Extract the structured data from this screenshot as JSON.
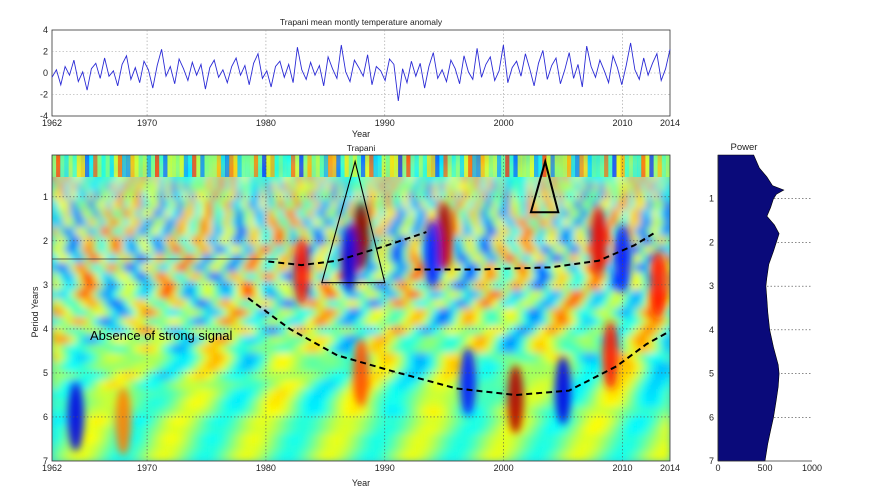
{
  "chart_data": [
    {
      "type": "line",
      "title": "Trapani mean montly temperature anomaly",
      "xlabel": "Year",
      "ylabel": "",
      "xlim": [
        1962,
        2014
      ],
      "ylim": [
        -4,
        4
      ],
      "xticks": [
        "1962",
        "1970",
        "1980",
        "1990",
        "2000",
        "2010",
        "2014"
      ],
      "yticks": [
        "4",
        "2",
        "0",
        "-2",
        "-4"
      ],
      "grid": true,
      "line_color": "#2b2bd6",
      "series": [
        {
          "values": [
            -0.4,
            0.3,
            -1.1,
            0.6,
            -0.2,
            1.2,
            -0.8,
            0.1,
            -1.6,
            0.4,
            0.9,
            -0.5,
            1.4,
            -0.3,
            0.2,
            -1.2,
            0.8,
            1.6,
            -0.6,
            0.5,
            -0.9,
            1.1,
            0.3,
            -1.4,
            0.7,
            2.2,
            -0.3,
            0.6,
            -1.0,
            1.3,
            0.4,
            -0.7,
            1.0,
            -0.2,
            0.8,
            -1.5,
            0.5,
            1.2,
            -0.4,
            0.3,
            -0.9,
            0.6,
            1.4,
            -0.2,
            0.7,
            -1.1,
            0.9,
            1.8,
            -0.5,
            0.2,
            -1.3,
            0.6,
            1.1,
            -0.4,
            0.8,
            -0.9,
            2.4,
            0.3,
            -0.6,
            1.0,
            -0.2,
            0.7,
            -1.2,
            1.5,
            0.4,
            -0.5,
            2.6,
            0.1,
            -0.8,
            1.2,
            0.5,
            -0.3,
            1.7,
            -1.1,
            0.6,
            0.2,
            -0.7,
            1.3,
            0.8,
            -2.6,
            0.4,
            -0.9,
            1.1,
            -0.3,
            0.9,
            -1.4,
            0.6,
            1.9,
            -0.5,
            0.3,
            -0.8,
            1.2,
            0.4,
            -1.0,
            1.6,
            0.1,
            -0.6,
            2.3,
            -0.4,
            0.8,
            1.5,
            -0.7,
            0.2,
            2.6,
            -0.9,
            0.5,
            1.1,
            -0.3,
            1.8,
            0.4,
            -1.2,
            0.9,
            2.1,
            -0.6,
            0.7,
            1.4,
            -1.0,
            0.3,
            1.9,
            -0.5,
            0.8,
            -1.3,
            2.5,
            0.6,
            -0.4,
            1.2,
            0.2,
            -0.9,
            1.6,
            0.5,
            -1.1,
            0.7,
            2.8,
            0.3,
            -0.6,
            1.4,
            -0.2,
            0.9,
            1.8,
            -0.7,
            0.4,
            2.2
          ]
        }
      ]
    },
    {
      "type": "heatmap",
      "title": "Trapani",
      "xlabel": "Year",
      "ylabel": "Period Years",
      "xlim": [
        1962,
        2014
      ],
      "ylim": [
        7,
        0.05
      ],
      "xticks": [
        "1962",
        "1970",
        "1980",
        "1990",
        "2000",
        "2010",
        "2014"
      ],
      "yticks": [
        "1",
        "2",
        "3",
        "4",
        "5",
        "6",
        "7"
      ],
      "grid": true,
      "annotation": "Absence of strong signal",
      "dashed_curves": [
        {
          "name": "upper",
          "points": [
            [
              1980.2,
              2.47
            ],
            [
              1983.0,
              2.55
            ],
            [
              1986.0,
              2.45
            ],
            [
              1990.0,
              2.12
            ],
            [
              1993.5,
              1.8
            ]
          ]
        },
        {
          "name": "middle",
          "points": [
            [
              1992.5,
              2.65
            ],
            [
              1998.0,
              2.65
            ],
            [
              2004.0,
              2.6
            ],
            [
              2008.0,
              2.45
            ],
            [
              2011.0,
              2.1
            ],
            [
              2012.8,
              1.8
            ]
          ]
        },
        {
          "name": "lower",
          "points": [
            [
              1978.5,
              3.3
            ],
            [
              1982.0,
              4.0
            ],
            [
              1986.0,
              4.6
            ],
            [
              1990.5,
              4.95
            ],
            [
              1996.0,
              5.35
            ],
            [
              2001.0,
              5.5
            ],
            [
              2005.5,
              5.4
            ],
            [
              2009.5,
              4.85
            ],
            [
              2012.0,
              4.35
            ],
            [
              2014.0,
              4.05
            ]
          ]
        }
      ],
      "triangles": [
        {
          "apex": [
            1987.5,
            0.2
          ],
          "base_left": [
            1984.7,
            2.95
          ],
          "base_right": [
            1990.0,
            2.95
          ]
        },
        {
          "apex": [
            2003.5,
            0.2
          ],
          "base_left": [
            2002.3,
            1.35
          ],
          "base_right": [
            2004.6,
            1.35
          ]
        }
      ],
      "colormap": "jet",
      "signal_patches": [
        {
          "x": 1988,
          "period": 1.9,
          "value": 1.0
        },
        {
          "x": 1987,
          "period": 2.4,
          "value": -0.8
        },
        {
          "x": 1995,
          "period": 1.9,
          "value": 0.9
        },
        {
          "x": 1994,
          "period": 2.3,
          "value": -0.7
        },
        {
          "x": 2001,
          "period": 5.6,
          "value": 0.9
        },
        {
          "x": 2005,
          "period": 5.4,
          "value": -0.8
        },
        {
          "x": 1997,
          "period": 5.2,
          "value": -0.7
        },
        {
          "x": 2009,
          "period": 4.6,
          "value": 0.7
        },
        {
          "x": 1968,
          "period": 6.1,
          "value": 0.5
        },
        {
          "x": 1964,
          "period": 6.0,
          "value": -0.8
        },
        {
          "x": 1988,
          "period": 5.0,
          "value": 0.6
        },
        {
          "x": 1983,
          "period": 2.7,
          "value": 0.7
        },
        {
          "x": 2008,
          "period": 2.0,
          "value": 0.8
        },
        {
          "x": 2010,
          "period": 2.4,
          "value": -0.7
        },
        {
          "x": 2013,
          "period": 3.0,
          "value": 0.7
        }
      ]
    },
    {
      "type": "area",
      "title": "Power",
      "xlabel": "",
      "ylabel": "",
      "xlim": [
        0,
        1000
      ],
      "ylim": [
        7,
        0
      ],
      "xticks": [
        "0",
        "500",
        "1000"
      ],
      "yticks": [
        "1",
        "2",
        "3",
        "4",
        "5",
        "6",
        "7"
      ],
      "fill_color": "#0a0a7a",
      "period": [
        0.0,
        0.3,
        0.5,
        0.7,
        0.8,
        0.9,
        1.0,
        1.2,
        1.4,
        1.6,
        1.8,
        2.0,
        2.2,
        2.5,
        2.8,
        3.0,
        3.3,
        3.6,
        4.0,
        4.4,
        4.8,
        5.0,
        5.3,
        5.6,
        6.0,
        6.3,
        6.6,
        7.0
      ],
      "power": [
        380,
        440,
        520,
        580,
        700,
        620,
        590,
        560,
        520,
        600,
        650,
        620,
        590,
        540,
        520,
        510,
        520,
        530,
        550,
        590,
        640,
        650,
        640,
        620,
        590,
        560,
        530,
        500
      ]
    }
  ]
}
